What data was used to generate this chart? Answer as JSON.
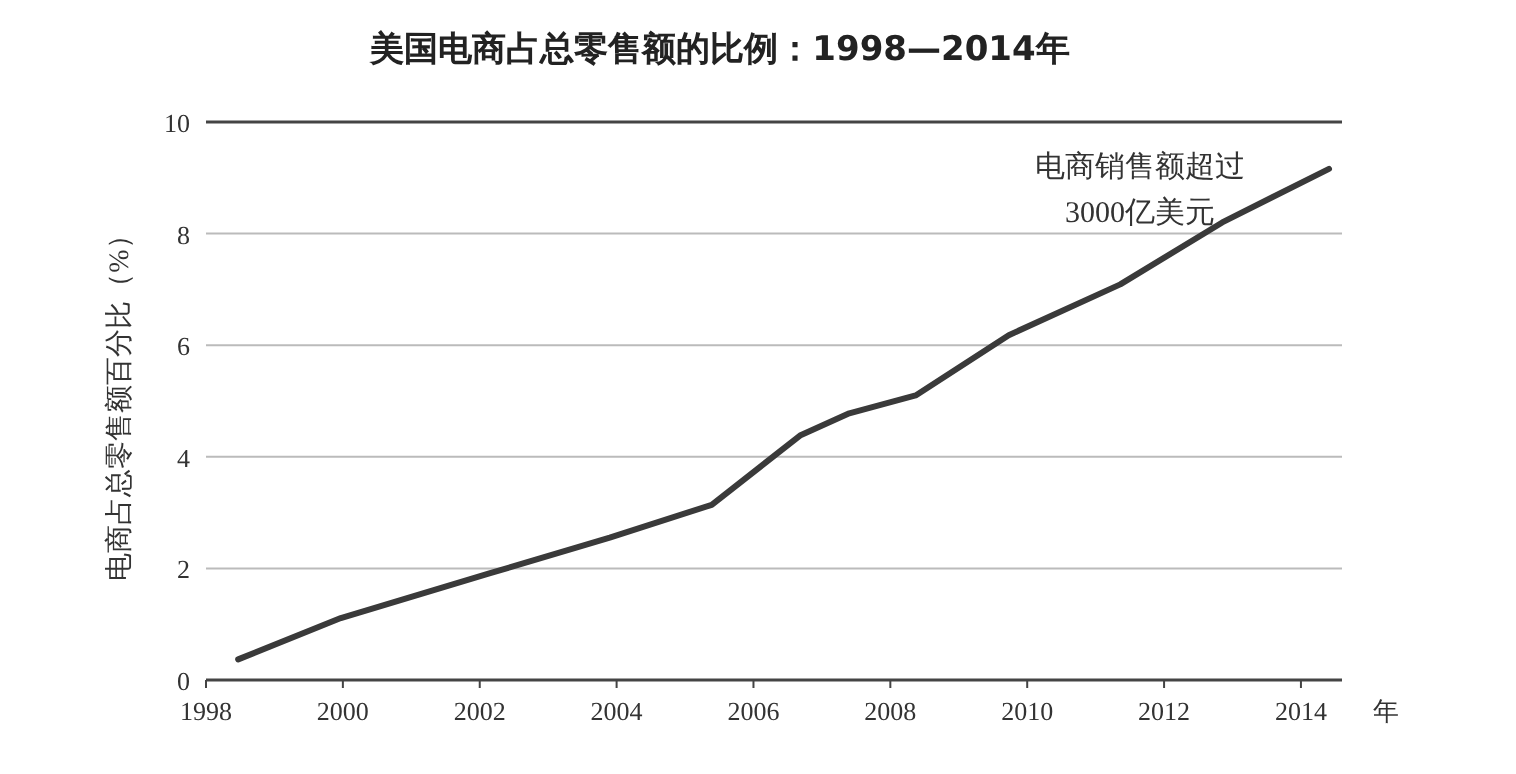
{
  "chart_data": {
    "type": "line",
    "title": "美国电商占总零售额的比例：1998—2014年",
    "ylabel": "电商占总零售额百分比（%）",
    "xlabel": "年",
    "x": [
      1998.47,
      1999.97,
      2002.14,
      2003.9,
      2005.39,
      2006.68,
      2007.4,
      2008.37,
      2009.73,
      2011.36,
      2012.85,
      2014.41
    ],
    "series": [
      {
        "color": "#3a3a3a",
        "values": [
          0.37,
          1.11,
          1.91,
          2.55,
          3.14,
          4.38,
          4.78,
          5.1,
          6.18,
          7.09,
          8.2,
          9.16
        ]
      }
    ],
    "xlim": [
      1998,
      2014.6
    ],
    "ylim": [
      0,
      10
    ],
    "xticks": [
      1998,
      2000,
      2002,
      2004,
      2006,
      2008,
      2010,
      2012,
      2014
    ],
    "yticks": [
      0,
      2,
      4,
      6,
      8,
      10
    ],
    "grid": "y",
    "marker": "none",
    "line_style": "solid",
    "annotations": [
      "电商销售额超过\n3000亿美元"
    ]
  }
}
